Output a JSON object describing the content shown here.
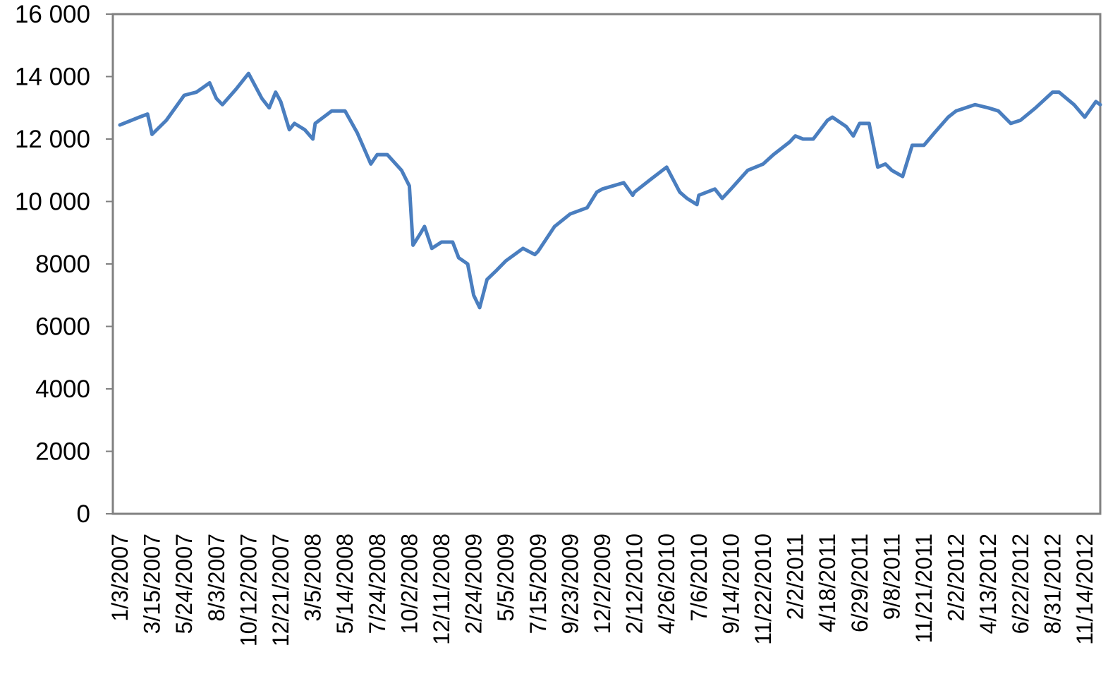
{
  "chart_data": {
    "type": "line",
    "title": "",
    "xlabel": "",
    "ylabel": "",
    "ylim": [
      0,
      16000
    ],
    "y_ticks": [
      0,
      2000,
      4000,
      6000,
      8000,
      10000,
      12000,
      14000,
      16000
    ],
    "y_tick_labels": [
      "0",
      "2000",
      "4000",
      "6000",
      "8000",
      "10 000",
      "12 000",
      "14 000",
      "16 000"
    ],
    "x_tick_labels": [
      "1/3/2007",
      "3/15/2007",
      "5/24/2007",
      "8/3/2007",
      "10/12/2007",
      "12/21/2007",
      "3/5/2008",
      "5/14/2008",
      "7/24/2008",
      "10/2/2008",
      "12/11/2008",
      "2/24/2009",
      "5/5/2009",
      "7/15/2009",
      "9/23/2009",
      "12/2/2009",
      "2/12/2010",
      "4/26/2010",
      "7/6/2010",
      "9/14/2010",
      "11/22/2010",
      "2/2/2011",
      "4/18/2011",
      "6/29/2011",
      "9/8/2011",
      "11/21/2011",
      "2/2/2012",
      "4/13/2012",
      "6/22/2012",
      "8/31/2012",
      "11/14/2012"
    ],
    "grid": false,
    "legend": "none",
    "series": [
      {
        "color": "#4a7ebf",
        "x": [
          "1/3/2007",
          "2/15/2007",
          "3/5/2007",
          "3/15/2007",
          "4/15/2007",
          "5/24/2007",
          "6/20/2007",
          "7/19/2007",
          "8/3/2007",
          "8/16/2007",
          "9/15/2007",
          "10/12/2007",
          "11/10/2007",
          "11/26/2007",
          "12/10/2007",
          "12/21/2007",
          "1/10/2008",
          "1/22/2008",
          "2/15/2008",
          "3/5/2008",
          "3/10/2008",
          "4/15/2008",
          "5/14/2008",
          "6/10/2008",
          "7/10/2008",
          "7/24/2008",
          "8/15/2008",
          "9/15/2008",
          "10/2/2008",
          "10/10/2008",
          "10/27/2008",
          "11/4/2008",
          "11/20/2008",
          "12/11/2008",
          "1/6/2009",
          "1/20/2009",
          "2/10/2009",
          "2/24/2009",
          "3/9/2009",
          "3/25/2009",
          "4/15/2009",
          "5/5/2009",
          "6/12/2009",
          "7/8/2009",
          "7/15/2009",
          "8/20/2009",
          "9/23/2009",
          "10/30/2009",
          "11/20/2009",
          "12/2/2009",
          "1/19/2010",
          "2/8/2010",
          "2/12/2010",
          "3/20/2010",
          "4/26/2010",
          "5/25/2010",
          "6/10/2010",
          "7/2/2010",
          "7/6/2010",
          "8/10/2010",
          "8/26/2010",
          "9/14/2010",
          "10/20/2010",
          "11/22/2010",
          "12/15/2010",
          "1/20/2011",
          "2/2/2011",
          "2/20/2011",
          "3/16/2011",
          "4/18/2011",
          "4/29/2011",
          "5/30/2011",
          "6/15/2011",
          "6/29/2011",
          "7/20/2011",
          "8/8/2011",
          "8/25/2011",
          "9/8/2011",
          "10/3/2011",
          "10/25/2011",
          "11/21/2011",
          "12/15/2011",
          "1/15/2012",
          "2/2/2012",
          "3/15/2012",
          "4/13/2012",
          "5/5/2012",
          "6/1/2012",
          "6/22/2012",
          "7/25/2012",
          "8/31/2012",
          "9/15/2012",
          "10/20/2012",
          "11/14/2012",
          "12/10/2012",
          "12/31/2012"
        ],
        "values": [
          12450,
          12700,
          12800,
          12150,
          12600,
          13400,
          13500,
          13800,
          13300,
          13100,
          13600,
          14100,
          13300,
          13000,
          13500,
          13200,
          12300,
          12500,
          12300,
          12000,
          12500,
          12900,
          12900,
          12200,
          11200,
          11500,
          11500,
          11000,
          10500,
          8600,
          9000,
          9200,
          8500,
          8700,
          8700,
          8200,
          8000,
          7000,
          6600,
          7500,
          7800,
          8100,
          8500,
          8300,
          8400,
          9200,
          9600,
          9800,
          10300,
          10400,
          10600,
          10200,
          10300,
          10700,
          11100,
          10300,
          10100,
          9900,
          10200,
          10400,
          10100,
          10400,
          11000,
          11200,
          11500,
          11900,
          12100,
          12000,
          12000,
          12600,
          12700,
          12400,
          12100,
          12500,
          12500,
          11100,
          11200,
          11000,
          10800,
          11800,
          11800,
          12200,
          12700,
          12900,
          13100,
          13000,
          12900,
          12500,
          12600,
          13000,
          13500,
          13500,
          13100,
          12700,
          13200,
          13100
        ]
      }
    ]
  }
}
